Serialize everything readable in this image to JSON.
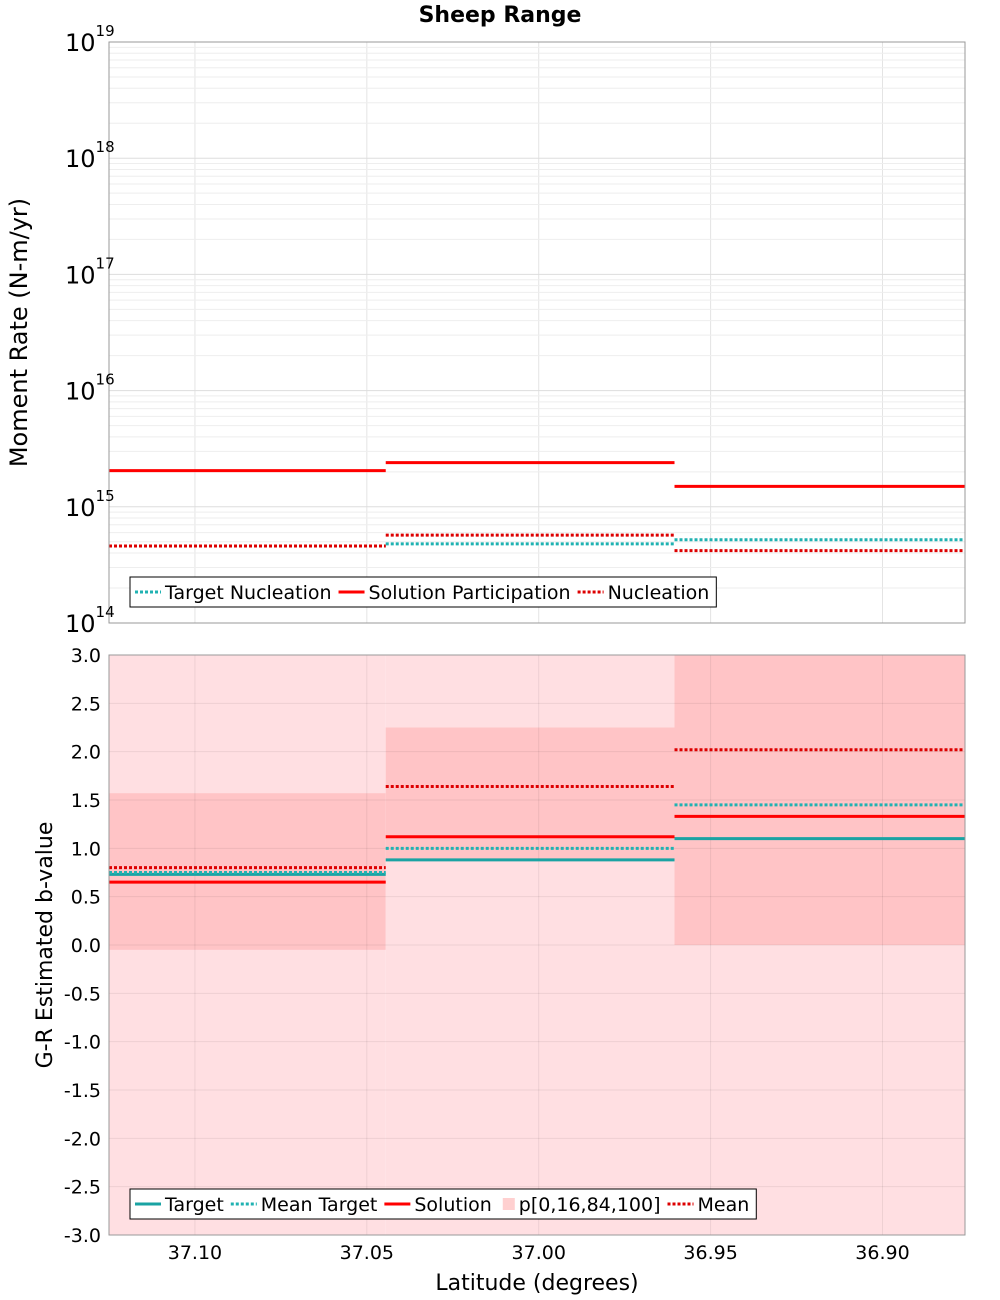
{
  "title": "Sheep Range",
  "chart_data": [
    {
      "type": "line",
      "title": "Sheep Range",
      "xlabel": "",
      "ylabel": "Moment Rate (N-m/yr)",
      "yscale": "log",
      "ylim": [
        100000000000000.0,
        1e+19
      ],
      "xlim": [
        37.125,
        36.876
      ],
      "x_reversed": true,
      "yticks": [
        {
          "base": "10",
          "exp": "14",
          "value": 100000000000000.0
        },
        {
          "base": "10",
          "exp": "15",
          "value": 1000000000000000.0
        },
        {
          "base": "10",
          "exp": "16",
          "value": 1e+16
        },
        {
          "base": "10",
          "exp": "17",
          "value": 1e+17
        },
        {
          "base": "10",
          "exp": "18",
          "value": 1e+18
        },
        {
          "base": "10",
          "exp": "19",
          "value": 1e+19
        }
      ],
      "grid": true,
      "legend_position": "bottom-left",
      "bins": [
        [
          37.125,
          37.0445
        ],
        [
          37.0445,
          36.9605
        ],
        [
          36.9605,
          36.876
        ]
      ],
      "series": [
        {
          "name": "Target Nucleation",
          "color": "#20b2b2",
          "style": "dotted",
          "values": [
            460000000000000.0,
            480000000000000.0,
            520000000000000.0
          ]
        },
        {
          "name": "Solution Participation",
          "color": "#ff0000",
          "style": "solid",
          "values": [
            2050000000000000.0,
            2400000000000000.0,
            1500000000000000.0
          ]
        },
        {
          "name": "Nucleation",
          "color": "#dd0000",
          "style": "dotted",
          "values": [
            460000000000000.0,
            570000000000000.0,
            420000000000000.0
          ]
        }
      ]
    },
    {
      "type": "line",
      "title": "",
      "xlabel": "Latitude (degrees)",
      "ylabel": "G-R Estimated b-value",
      "ylim": [
        -3.0,
        3.0
      ],
      "xlim": [
        37.125,
        36.876
      ],
      "x_reversed": true,
      "xticks": [
        "37.10",
        "37.05",
        "37.00",
        "36.95",
        "36.90"
      ],
      "xtick_values": [
        37.1,
        37.05,
        37.0,
        36.95,
        36.9
      ],
      "yticks": [
        "3.0",
        "2.5",
        "2.0",
        "1.5",
        "1.0",
        "0.5",
        "0.0",
        "-0.5",
        "-1.0",
        "-1.5",
        "-2.0",
        "-2.5",
        "-3.0"
      ],
      "ytick_values": [
        3.0,
        2.5,
        2.0,
        1.5,
        1.0,
        0.5,
        0.0,
        -0.5,
        -1.0,
        -1.5,
        -2.0,
        -2.5,
        -3.0
      ],
      "grid": true,
      "legend_position": "bottom-left",
      "bins": [
        [
          37.125,
          37.0445
        ],
        [
          37.0445,
          36.9605
        ],
        [
          36.9605,
          36.876
        ]
      ],
      "percentile_name": "p[0,16,84,100]",
      "percentile_bands": {
        "outer": [
          [
            -3.0,
            3.0
          ],
          [
            -3.0,
            3.0
          ],
          [
            -3.0,
            3.0
          ]
        ],
        "inner": [
          [
            -0.05,
            1.57
          ],
          [
            0.88,
            2.25
          ],
          [
            0.0,
            3.0
          ]
        ]
      },
      "series": [
        {
          "name": "Target",
          "color": "#1aa3a3",
          "style": "solid",
          "values": [
            0.73,
            0.88,
            1.1
          ]
        },
        {
          "name": "Mean Target",
          "color": "#20b2b2",
          "style": "dotted",
          "values": [
            0.75,
            1.0,
            1.45
          ]
        },
        {
          "name": "Solution",
          "color": "#ff0000",
          "style": "solid",
          "values": [
            0.65,
            1.12,
            1.33
          ]
        },
        {
          "name": "Mean",
          "color": "#dd0000",
          "style": "dotted",
          "values": [
            0.8,
            1.64,
            2.02
          ]
        }
      ]
    }
  ]
}
